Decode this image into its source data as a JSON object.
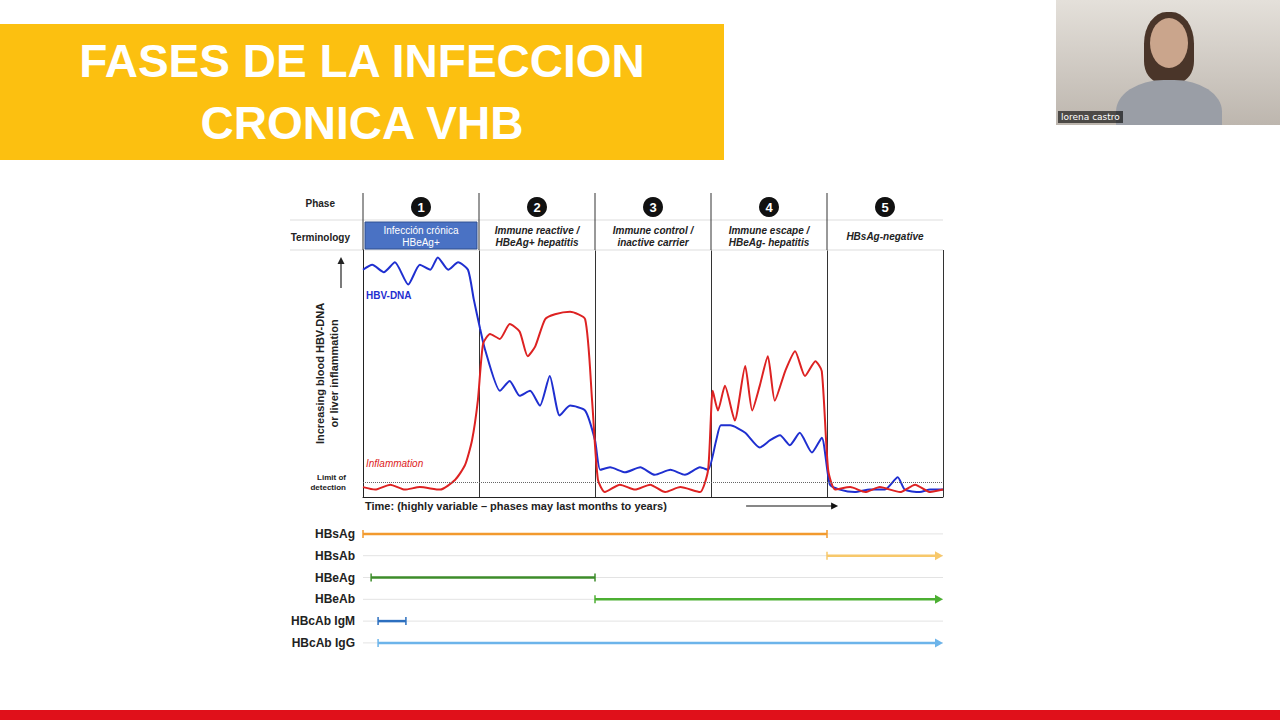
{
  "slide": {
    "title": "FASES DE LA INFECCION CRONICA VHB",
    "webcam_name": "lorena castro"
  },
  "chart_data": {
    "type": "line",
    "header_labels": {
      "phase": "Phase",
      "terminology": "Terminology"
    },
    "phases": [
      {
        "number": 1,
        "terminology": "Infección crónica HBeAg+",
        "start": 0,
        "end": 20,
        "color": "#4a72c4"
      },
      {
        "number": 2,
        "terminology": "Immune reactive / HBeAg+ hepatitis",
        "start": 20,
        "end": 40
      },
      {
        "number": 3,
        "terminology": "Immune control / inactive carrier",
        "start": 40,
        "end": 60
      },
      {
        "number": 4,
        "terminology": "Immune escape / HBeAg- hepatitis",
        "start": 60,
        "end": 80
      },
      {
        "number": 5,
        "terminology": "HBsAg-negative",
        "start": 80,
        "end": 100
      }
    ],
    "y_label": "Increasing blood HBV-DNA or liver inflammation",
    "x_label": "Time: (highly variable – phases may last months to years)",
    "xlim": [
      0,
      100
    ],
    "xticks": [
      0,
      20,
      40,
      60,
      80,
      100
    ],
    "ylim": [
      0,
      100
    ],
    "yticks": [
      0,
      100
    ],
    "grid": "x",
    "tick_labels": false,
    "limit_of_detection": {
      "label": "Limit of detection",
      "value": 6
    },
    "series": [
      {
        "name": "HBV-DNA",
        "color": "#1f2fd0",
        "x": [
          0,
          1.6,
          3.6,
          5.5,
          7.8,
          9.8,
          11.6,
          12.9,
          14.7,
          16.4,
          18.1,
          19.1,
          20.2,
          21,
          23.6,
          25.3,
          27,
          28.8,
          30.5,
          32.2,
          33.9,
          35.7,
          38.3,
          40,
          40.9,
          42.6,
          45.2,
          47.8,
          50.3,
          53,
          55.5,
          58.1,
          59.5,
          60.9,
          61.7,
          63.3,
          65.9,
          68.4,
          70.2,
          71.9,
          73.6,
          75.3,
          77.4,
          79.1,
          80.5,
          82.2,
          84.8,
          87.4,
          90,
          92.2,
          93.4,
          96,
          97.8,
          100
        ],
        "values": [
          92,
          94,
          91,
          95,
          86,
          94,
          92,
          97,
          92,
          95,
          92,
          80,
          68,
          60,
          43,
          47,
          41,
          43,
          37,
          49,
          33,
          37,
          35,
          23,
          11,
          12,
          10,
          12,
          9,
          11,
          9,
          12,
          11,
          23,
          29,
          29,
          26,
          20,
          23,
          25,
          21,
          26,
          18,
          24,
          5,
          3,
          2,
          3,
          3,
          8,
          3,
          2,
          3,
          3
        ]
      },
      {
        "name": "Inflammation",
        "color": "#dd2222",
        "x": [
          0,
          2.1,
          4.7,
          7.2,
          9.8,
          13.3,
          15.9,
          17.6,
          18.8,
          19.8,
          20.7,
          21.9,
          23.6,
          25.3,
          27,
          28.4,
          29.7,
          31.4,
          33.1,
          35.7,
          38.3,
          39.5,
          40.5,
          41.7,
          44.3,
          46.9,
          49.5,
          52.1,
          54.7,
          58.1,
          59.5,
          60.3,
          61.2,
          62.4,
          64.1,
          65.9,
          67.1,
          68.4,
          69.8,
          71,
          72.8,
          74.5,
          76.2,
          78,
          79.1,
          80.2,
          81.4,
          84,
          86.6,
          89.1,
          92.6,
          95.2,
          97.8,
          100
        ],
        "values": [
          4,
          3,
          5,
          3,
          4,
          3,
          7,
          13,
          23,
          39,
          62,
          66,
          64,
          70,
          67,
          57,
          61,
          72,
          74,
          75,
          72,
          39,
          7,
          2,
          5,
          3,
          5,
          2,
          4,
          2,
          11,
          43,
          35,
          45,
          31,
          53,
          35,
          45,
          57,
          39,
          51,
          59,
          49,
          55,
          51,
          11,
          3,
          4,
          2,
          4,
          2,
          5,
          2,
          3
        ]
      }
    ],
    "markers": [
      {
        "name": "HBsAg",
        "start": 0,
        "end": 80,
        "color": "#f29a2e",
        "marker": "tick"
      },
      {
        "name": "HBsAb",
        "start": 80,
        "end": 100,
        "color": "#f7c86b",
        "marker": "arrow"
      },
      {
        "name": "HBeAg",
        "start": 1.4,
        "end": 40,
        "color": "#3d8c2a",
        "marker": "tick"
      },
      {
        "name": "HBeAb",
        "start": 40,
        "end": 100,
        "color": "#4caf32",
        "marker": "arrow"
      },
      {
        "name": "HBcAb IgM",
        "start": 2.6,
        "end": 7.4,
        "color": "#2c6fbf",
        "marker": "tick"
      },
      {
        "name": "HBcAb IgG",
        "start": 2.6,
        "end": 100,
        "color": "#6cb4ea",
        "marker": "arrow"
      }
    ]
  }
}
